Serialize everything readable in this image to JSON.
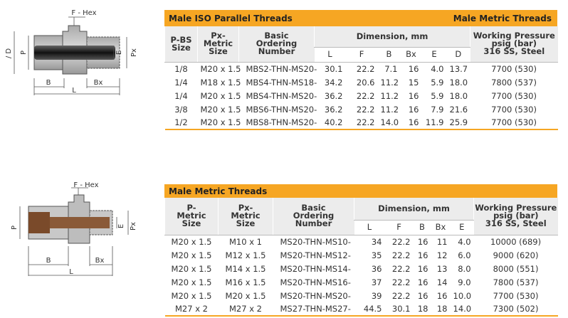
{
  "diagram1": {
    "labels": [
      "F - Hex",
      "/ D",
      "P",
      "E",
      "Px",
      "B",
      "Bx",
      "L"
    ]
  },
  "table1": {
    "title": "Male ISO Parallel Threads",
    "title_right": "Male Metric Threads",
    "headers": [
      "P-BS\nSize",
      "Px-\nMetric\nSize",
      "Basic\nOrdering\nNumber"
    ],
    "dimension_header": "Dimension, mm",
    "dimension_columns": [
      "L",
      "F",
      "B",
      "Bx",
      "E",
      "D"
    ],
    "pressure_header": "Working Pressure\npsig (bar)\n316 SS, Steel",
    "rows": [
      [
        "1/8",
        "M20 x 1.5",
        "MBS2-THN-MS20-",
        "30.1",
        "22.2",
        "7.1",
        "16",
        "4.0",
        "13.7",
        "7700 (530)"
      ],
      [
        "1/4",
        "M18 x 1.5",
        "MBS4-THN-MS18-",
        "34.2",
        "20.6",
        "11.2",
        "15",
        "5.9",
        "18.0",
        "7800 (537)"
      ],
      [
        "1/4",
        "M20 x 1.5",
        "MBS4-THN-MS20-",
        "36.2",
        "22.2",
        "11.2",
        "16",
        "5.9",
        "18.0",
        "7700 (530)"
      ],
      [
        "3/8",
        "M20 x 1.5",
        "MBS6-THN-MS20-",
        "36.2",
        "22.2",
        "11.2",
        "16",
        "7.9",
        "21.6",
        "7700 (530)"
      ],
      [
        "1/2",
        "M20 x 1.5",
        "MBS8-THN-MS20-",
        "40.2",
        "22.2",
        "14.0",
        "16",
        "11.9",
        "25.9",
        "7700 (530)"
      ]
    ]
  },
  "diagram2": {
    "labels": [
      "F - Hex",
      "P",
      "E",
      "Px",
      "B",
      "Bx",
      "L"
    ]
  },
  "table2": {
    "title": "Male Metric Threads",
    "headers": [
      "P-\nMetric\nSize",
      "Px-\nMetric\nSize",
      "Basic\nOrdering\nNumber"
    ],
    "dimension_header": "Dimension, mm",
    "dimension_columns": [
      "L",
      "F",
      "B",
      "Bx",
      "E"
    ],
    "pressure_header": "Working Pressure\npsig (bar)\n316 SS, Steel",
    "rows": [
      [
        "M20 x 1.5",
        "M10 x 1",
        "MS20-THN-MS10-",
        "34",
        "22.2",
        "16",
        "11",
        "4.0",
        "10000 (689)"
      ],
      [
        "M20 x 1.5",
        "M12 x 1.5",
        "MS20-THN-MS12-",
        "35",
        "22.2",
        "16",
        "12",
        "6.0",
        "9000 (620)"
      ],
      [
        "M20 x 1.5",
        "M14 x 1.5",
        "MS20-THN-MS14-",
        "36",
        "22.2",
        "16",
        "13",
        "8.0",
        "8000 (551)"
      ],
      [
        "M20 x 1.5",
        "M16 x 1.5",
        "MS20-THN-MS16-",
        "37",
        "22.2",
        "16",
        "14",
        "9.0",
        "7800 (537)"
      ],
      [
        "M20 x 1.5",
        "M20 x 1.5",
        "MS20-THN-MS20-",
        "39",
        "22.2",
        "16",
        "16",
        "10.0",
        "7700 (530)"
      ],
      [
        "M27 x 2",
        "M27 x 2",
        "MS27-THN-MS27-",
        "44.5",
        "30.1",
        "18",
        "18",
        "14.0",
        "7300 (502)"
      ]
    ]
  }
}
